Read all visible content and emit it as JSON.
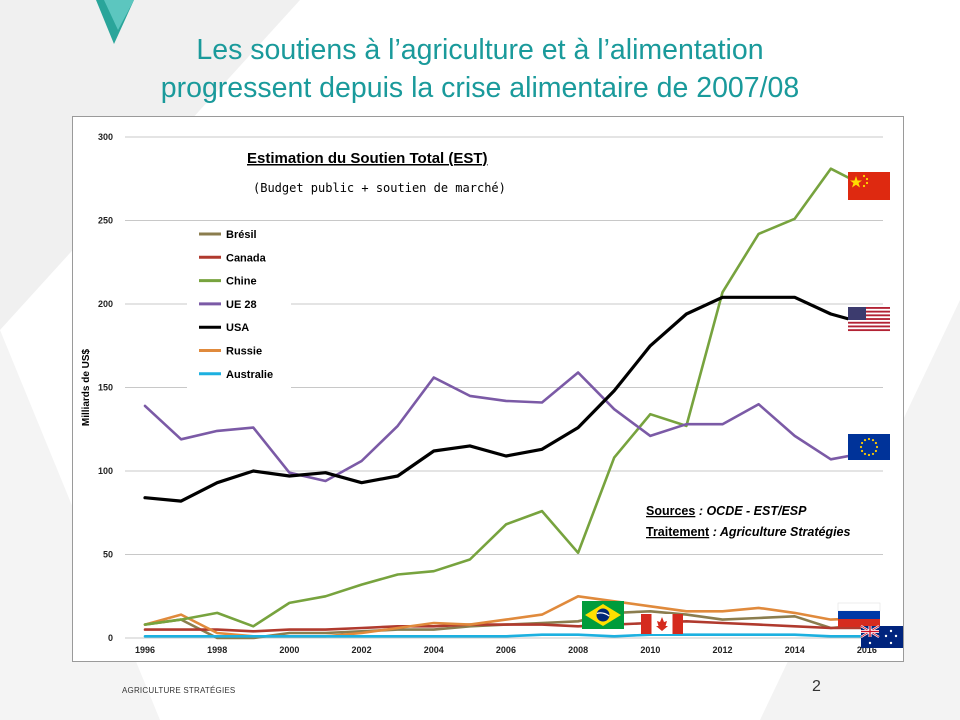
{
  "slide": {
    "title_line1": "Les soutiens à l’agriculture et à l’alimentation",
    "title_line2": "progressent depuis la crise alimentaire de 2007/08",
    "footer": "AGRICULTURE STRATÉGIES",
    "page_number": "2",
    "accent_color": "#1a9a9b"
  },
  "chart_data": {
    "type": "line",
    "title": "Estimation du Soutien Total (EST)",
    "subtitle": "(Budget public + soutien de marché)",
    "ylabel": "Milliards de US$",
    "xlabel": "",
    "ylim": [
      0,
      300
    ],
    "xlim": [
      1996,
      2017
    ],
    "yticks": [
      0,
      50,
      100,
      150,
      200,
      250,
      300
    ],
    "xticks": [
      1996,
      1998,
      2000,
      2002,
      2004,
      2006,
      2008,
      2010,
      2012,
      2014,
      2016
    ],
    "grid": "horizontal",
    "legend_position": "top-left",
    "x": [
      1996,
      1997,
      1998,
      1999,
      2000,
      2001,
      2002,
      2003,
      2004,
      2005,
      2006,
      2007,
      2008,
      2009,
      2010,
      2011,
      2012,
      2013,
      2014,
      2015,
      2016
    ],
    "series": [
      {
        "name": "Brésil",
        "color": "#8b7d4e",
        "values": [
          8,
          11,
          0,
          0,
          3,
          3,
          4,
          5,
          5,
          7,
          8,
          9,
          10,
          15,
          16,
          14,
          11,
          12,
          13,
          6,
          8
        ]
      },
      {
        "name": "Canada",
        "color": "#b03a2e",
        "values": [
          5,
          5,
          5,
          4,
          5,
          5,
          6,
          7,
          7,
          8,
          8,
          8,
          7,
          8,
          9,
          10,
          9,
          8,
          7,
          6,
          6
        ]
      },
      {
        "name": "Chine",
        "color": "#77a33e",
        "values": [
          8,
          11,
          15,
          7,
          21,
          25,
          32,
          38,
          40,
          47,
          68,
          76,
          51,
          108,
          134,
          127,
          207,
          242,
          251,
          281,
          270
        ]
      },
      {
        "name": "UE 28",
        "color": "#7b5aa6",
        "values": [
          139,
          119,
          124,
          126,
          99,
          94,
          106,
          127,
          156,
          145,
          142,
          141,
          159,
          137,
          121,
          128,
          128,
          140,
          121,
          107,
          111
        ]
      },
      {
        "name": "USA",
        "color": "#000000",
        "values": [
          84,
          82,
          93,
          100,
          97,
          99,
          93,
          97,
          112,
          115,
          109,
          113,
          126,
          148,
          175,
          194,
          204,
          204,
          204,
          194,
          188
        ]
      },
      {
        "name": "Russie",
        "color": "#e08a3c",
        "values": [
          8,
          14,
          3,
          1,
          1,
          1,
          3,
          6,
          9,
          8,
          11,
          14,
          25,
          22,
          19,
          16,
          16,
          18,
          15,
          11,
          12
        ]
      },
      {
        "name": "Australie",
        "color": "#1cb0e0",
        "values": [
          1,
          1,
          1,
          1,
          1,
          1,
          1,
          1,
          1,
          1,
          1,
          2,
          2,
          1,
          2,
          2,
          2,
          2,
          2,
          1,
          1
        ]
      }
    ],
    "annotations": {
      "sources_label": "Sources",
      "sources_value": " : OCDE - EST/ESP",
      "traitement_label": "Traitement",
      "traitement_value": " : Agriculture Stratégies"
    },
    "flags": [
      "Chine",
      "USA",
      "UE 28",
      "Russie",
      "Australie",
      "Brésil",
      "Canada"
    ]
  }
}
